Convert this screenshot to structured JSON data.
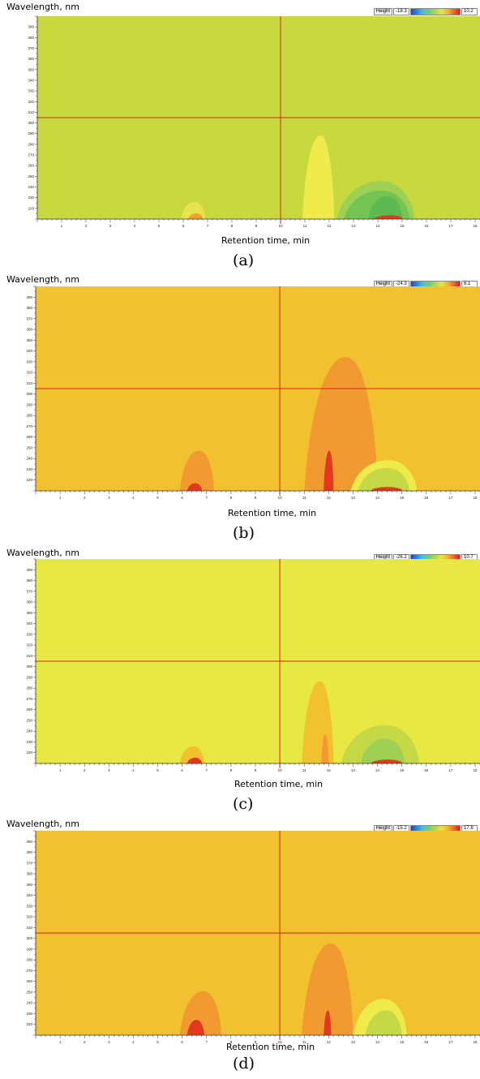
{
  "chart_data": [
    {
      "type": "heatmap",
      "caption": "(a)",
      "ylabel": "Wavelength, nm",
      "xlabel": "Retention time, min",
      "legend_label": "Height",
      "legend_min": "-18.3",
      "legend_max": "10.2",
      "x_ticks": [
        "1",
        "2",
        "3",
        "4",
        "5",
        "6",
        "7",
        "8",
        "9",
        "10",
        "11",
        "12",
        "13",
        "14",
        "15",
        "16",
        "17",
        "18"
      ],
      "y_ticks": [
        "390",
        "380",
        "370",
        "360",
        "350",
        "340",
        "330",
        "320",
        "310",
        "300",
        "290",
        "280",
        "270",
        "260",
        "250",
        "240",
        "230",
        "220"
      ],
      "xlim": [
        0,
        18.2
      ],
      "ylim": [
        210,
        400
      ],
      "cursor": {
        "x": 10,
        "y": 305
      },
      "background_color": "#c8d940",
      "features": [
        {
          "x_range": [
            5.9,
            6.9
          ],
          "y_peak": 228,
          "color": "#e8e34d"
        },
        {
          "x_range": [
            6.2,
            6.8
          ],
          "y_peak": 216,
          "color": "#f1a232"
        },
        {
          "x_range": [
            10.9,
            12.2
          ],
          "y_peak": 298,
          "color": "#eeeb4a"
        },
        {
          "x_range": [
            12.3,
            15.5
          ],
          "y_peak": 250,
          "color": "#9ed054"
        },
        {
          "x_range": [
            12.6,
            15.3
          ],
          "y_peak": 240,
          "color": "#74c455"
        },
        {
          "x_range": [
            13.6,
            15.0
          ],
          "y_peak": 234,
          "color": "#5cba50"
        },
        {
          "x_range": [
            13.8,
            15.0
          ],
          "y_peak": 214,
          "color": "#d83f1e"
        }
      ]
    },
    {
      "type": "heatmap",
      "caption": "(b)",
      "ylabel": "Wavelength, nm",
      "xlabel": "Retention time, min",
      "legend_label": "Height",
      "legend_min": "-24.3",
      "legend_max": "6.1",
      "x_ticks": [
        "1",
        "2",
        "3",
        "4",
        "5",
        "6",
        "7",
        "8",
        "9",
        "10",
        "11",
        "12",
        "13",
        "14",
        "15",
        "16",
        "17",
        "18"
      ],
      "y_ticks": [
        "390",
        "380",
        "370",
        "360",
        "350",
        "340",
        "330",
        "320",
        "310",
        "300",
        "290",
        "280",
        "270",
        "260",
        "250",
        "240",
        "230",
        "220"
      ],
      "xlim": [
        0,
        18.2
      ],
      "ylim": [
        210,
        400
      ],
      "cursor": {
        "x": 10,
        "y": 305
      },
      "background_color": "#f2c12f",
      "features": [
        {
          "x_range": [
            5.9,
            7.3
          ],
          "y_peak": 252,
          "color": "#f09a30"
        },
        {
          "x_range": [
            6.2,
            6.8
          ],
          "y_peak": 218,
          "color": "#e2391e"
        },
        {
          "x_range": [
            11.0,
            14.0
          ],
          "y_peak": 350,
          "color": "#f09a30"
        },
        {
          "x_range": [
            11.8,
            12.2
          ],
          "y_peak": 252,
          "color": "#e2391e"
        },
        {
          "x_range": [
            12.9,
            15.6
          ],
          "y_peak": 242,
          "color": "#eeeb4a"
        },
        {
          "x_range": [
            13.2,
            15.3
          ],
          "y_peak": 234,
          "color": "#c5d846"
        },
        {
          "x_range": [
            13.7,
            15.0
          ],
          "y_peak": 214,
          "color": "#d83f1e"
        }
      ]
    },
    {
      "type": "heatmap",
      "caption": "(c)",
      "ylabel": "Wavelength, nm",
      "xlabel": "Retention time, min",
      "legend_label": "Height",
      "legend_min": "-26.2",
      "legend_max": "10.7",
      "x_ticks": [
        "1",
        "2",
        "3",
        "4",
        "5",
        "6",
        "7",
        "8",
        "9",
        "10",
        "11",
        "12",
        "13",
        "14",
        "15",
        "16",
        "17",
        "18"
      ],
      "y_ticks": [
        "390",
        "380",
        "370",
        "360",
        "350",
        "340",
        "330",
        "320",
        "310",
        "300",
        "290",
        "280",
        "270",
        "260",
        "250",
        "240",
        "230",
        "220"
      ],
      "xlim": [
        0,
        18.2
      ],
      "ylim": [
        210,
        400
      ],
      "cursor": {
        "x": 10,
        "y": 305
      },
      "background_color": "#e8e844",
      "features": [
        {
          "x_range": [
            5.9,
            6.9
          ],
          "y_peak": 228,
          "color": "#f2c12f"
        },
        {
          "x_range": [
            6.2,
            6.8
          ],
          "y_peak": 216,
          "color": "#e2391e"
        },
        {
          "x_range": [
            10.9,
            12.2
          ],
          "y_peak": 296,
          "color": "#f2c12f"
        },
        {
          "x_range": [
            11.7,
            12.0
          ],
          "y_peak": 240,
          "color": "#f09a30"
        },
        {
          "x_range": [
            12.5,
            15.7
          ],
          "y_peak": 250,
          "color": "#c5d846"
        },
        {
          "x_range": [
            13.3,
            15.1
          ],
          "y_peak": 236,
          "color": "#9ed054"
        },
        {
          "x_range": [
            13.7,
            15.0
          ],
          "y_peak": 214,
          "color": "#d83f1e"
        }
      ]
    },
    {
      "type": "heatmap",
      "caption": "(d)",
      "ylabel": "Wavelength, nm",
      "xlabel": "Retention time, min",
      "legend_label": "Height",
      "legend_min": "-15.2",
      "legend_max": "17.8",
      "x_ticks": [
        "1",
        "2",
        "3",
        "4",
        "5",
        "6",
        "7",
        "8",
        "9",
        "10",
        "11",
        "12",
        "13",
        "14",
        "15",
        "16",
        "17",
        "18"
      ],
      "y_ticks": [
        "390",
        "380",
        "370",
        "360",
        "350",
        "340",
        "330",
        "320",
        "310",
        "300",
        "290",
        "280",
        "270",
        "260",
        "250",
        "240",
        "230",
        "220"
      ],
      "xlim": [
        0,
        18.2
      ],
      "ylim": [
        210,
        400
      ],
      "cursor": {
        "x": 10,
        "y": 305
      },
      "background_color": "#f2c12f",
      "features": [
        {
          "x_range": [
            5.9,
            7.6
          ],
          "y_peak": 256,
          "color": "#f09a30"
        },
        {
          "x_range": [
            6.2,
            6.9
          ],
          "y_peak": 226,
          "color": "#e2391e"
        },
        {
          "x_range": [
            10.9,
            13.0
          ],
          "y_peak": 306,
          "color": "#f09a30"
        },
        {
          "x_range": [
            11.8,
            12.1
          ],
          "y_peak": 236,
          "color": "#e2391e"
        },
        {
          "x_range": [
            13.0,
            15.2
          ],
          "y_peak": 248,
          "color": "#eeeb4a"
        },
        {
          "x_range": [
            13.5,
            15.0
          ],
          "y_peak": 236,
          "color": "#c5d846"
        }
      ]
    }
  ]
}
